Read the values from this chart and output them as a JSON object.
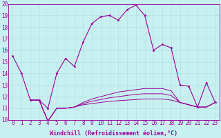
{
  "background_color": "#c8f0f0",
  "line_color": "#990099",
  "marker": "*",
  "xlabel": "Windchill (Refroidissement éolien,°C)",
  "xlim": [
    -0.5,
    23.5
  ],
  "ylim": [
    10,
    20
  ],
  "yticks": [
    10,
    11,
    12,
    13,
    14,
    15,
    16,
    17,
    18,
    19,
    20
  ],
  "xticks": [
    0,
    1,
    2,
    3,
    4,
    5,
    6,
    7,
    8,
    9,
    10,
    11,
    12,
    13,
    14,
    15,
    16,
    17,
    18,
    19,
    20,
    21,
    22,
    23
  ],
  "series1_x": [
    0,
    1,
    2,
    3,
    4,
    5,
    6,
    7,
    8,
    9,
    10,
    11,
    12,
    13,
    14,
    15,
    16,
    17,
    18,
    19,
    20,
    21,
    22,
    23
  ],
  "series1_y": [
    15.5,
    14.0,
    11.7,
    11.7,
    11.0,
    14.0,
    15.3,
    14.6,
    16.7,
    18.3,
    18.9,
    19.0,
    18.6,
    19.5,
    19.9,
    19.0,
    16.0,
    16.5,
    16.2,
    13.0,
    12.9,
    11.1,
    13.2,
    11.5
  ],
  "series2_x": [
    2,
    3,
    4,
    5,
    6,
    7,
    8,
    9,
    10,
    11,
    12,
    13,
    14,
    15,
    16,
    17,
    18,
    19,
    20,
    21,
    22,
    23
  ],
  "series2_y": [
    11.7,
    11.7,
    9.9,
    11.0,
    11.0,
    11.1,
    11.5,
    11.8,
    12.0,
    12.2,
    12.4,
    12.5,
    12.6,
    12.7,
    12.7,
    12.7,
    12.5,
    11.5,
    11.3,
    11.1,
    11.1,
    11.5
  ],
  "series3_x": [
    2,
    3,
    4,
    5,
    6,
    7,
    8,
    9,
    10,
    11,
    12,
    13,
    14,
    15,
    16,
    17,
    18,
    19,
    20,
    21,
    22,
    23
  ],
  "series3_y": [
    11.7,
    11.7,
    9.9,
    11.0,
    11.0,
    11.1,
    11.3,
    11.4,
    11.5,
    11.6,
    11.65,
    11.7,
    11.75,
    11.8,
    11.8,
    11.8,
    11.7,
    11.5,
    11.3,
    11.1,
    11.1,
    11.5
  ],
  "series4_x": [
    2,
    3,
    4,
    5,
    6,
    7,
    8,
    9,
    10,
    11,
    12,
    13,
    14,
    15,
    16,
    17,
    18,
    19,
    20,
    21,
    22,
    23
  ],
  "series4_y": [
    11.7,
    11.7,
    9.9,
    11.0,
    11.0,
    11.1,
    11.4,
    11.6,
    11.75,
    11.9,
    12.0,
    12.1,
    12.2,
    12.25,
    12.25,
    12.25,
    12.1,
    11.5,
    11.3,
    11.1,
    11.1,
    11.5
  ],
  "grid_color": "#b0dede",
  "spine_color": "#990099",
  "tick_color": "#990099",
  "label_fontsize": 5.5,
  "xlabel_fontsize": 6.0
}
